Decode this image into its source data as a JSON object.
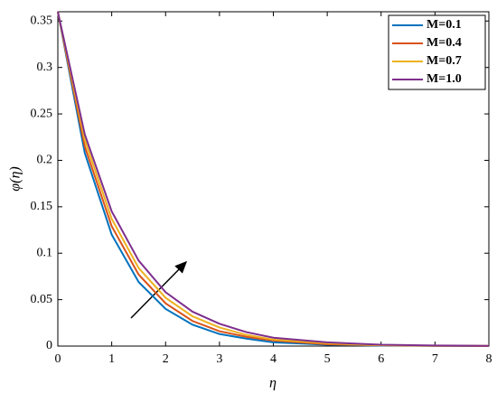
{
  "chart_data": {
    "type": "line",
    "x_label": "η",
    "y_label": "φ(η)",
    "x": [
      0,
      0.5,
      1,
      1.5,
      2,
      2.5,
      3,
      3.5,
      4,
      5,
      6,
      7,
      8
    ],
    "series": [
      {
        "name": "M=0.1",
        "color": "#0072BD",
        "values": [
          0.36,
          0.208,
          0.12,
          0.069,
          0.04,
          0.023,
          0.013,
          0.008,
          0.004,
          0.0015,
          0.0005,
          0.0002,
          0
        ]
      },
      {
        "name": "M=0.4",
        "color": "#D95319",
        "values": [
          0.36,
          0.215,
          0.129,
          0.077,
          0.046,
          0.027,
          0.016,
          0.01,
          0.006,
          0.002,
          0.0008,
          0.0003,
          0.0001
        ]
      },
      {
        "name": "M=0.7",
        "color": "#EDB120",
        "values": [
          0.36,
          0.222,
          0.137,
          0.084,
          0.052,
          0.032,
          0.02,
          0.012,
          0.007,
          0.003,
          0.001,
          0.0004,
          0.0002
        ]
      },
      {
        "name": "M=1.0",
        "color": "#7E2F8E",
        "values": [
          0.36,
          0.228,
          0.145,
          0.092,
          0.058,
          0.037,
          0.024,
          0.015,
          0.009,
          0.004,
          0.0015,
          0.0006,
          0.0003
        ]
      }
    ],
    "xlim": [
      0,
      8
    ],
    "xticks": [
      0,
      1,
      2,
      3,
      4,
      5,
      6,
      7,
      8
    ],
    "ylim": [
      0,
      0.36
    ],
    "yticks": [
      0,
      0.05,
      0.1,
      0.15,
      0.2,
      0.25,
      0.3,
      0.35
    ],
    "legend": "top-right"
  }
}
